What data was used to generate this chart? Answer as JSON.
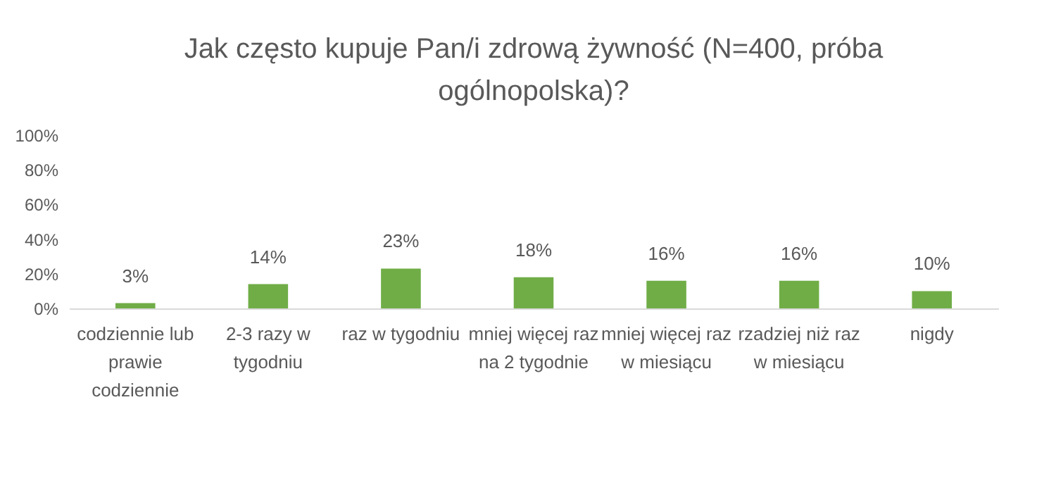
{
  "chart_data": {
    "type": "bar",
    "title": "Jak często kupuje Pan/i zdrową żywność (N=400, próba ogólnopolska)?",
    "categories": [
      "codziennie lub prawie codziennie",
      "2-3 razy w tygodniu",
      "raz w tygodniu",
      "mniej więcej raz na 2 tygodnie",
      "mniej więcej raz w miesiącu",
      "rzadziej niż raz w miesiącu",
      "nigdy"
    ],
    "values": [
      3,
      14,
      23,
      18,
      16,
      16,
      10
    ],
    "value_labels": [
      "3%",
      "14%",
      "23%",
      "18%",
      "16%",
      "16%",
      "10%"
    ],
    "color": "#70ad47",
    "ylim": [
      0,
      100
    ],
    "yticks": [
      {
        "value": 0,
        "label": "0%"
      },
      {
        "value": 20,
        "label": "20%"
      },
      {
        "value": 40,
        "label": "40%"
      },
      {
        "value": 60,
        "label": "60%"
      },
      {
        "value": 80,
        "label": "80%"
      },
      {
        "value": 100,
        "label": "100%"
      }
    ],
    "grid": false
  }
}
